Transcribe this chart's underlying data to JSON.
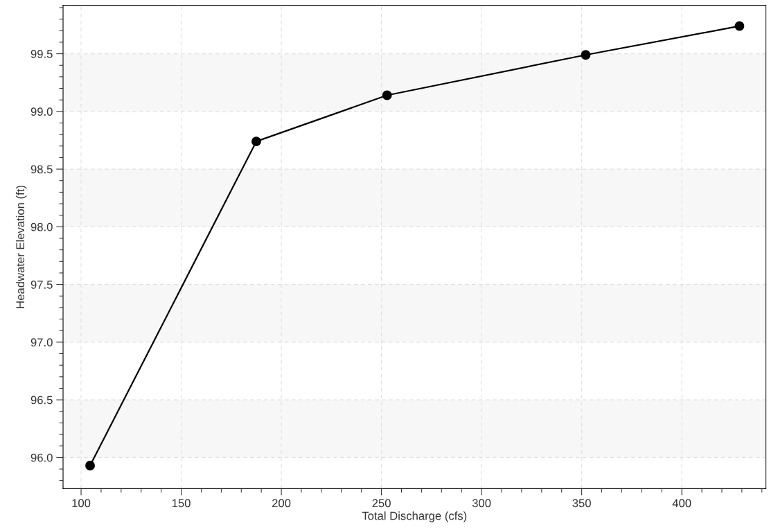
{
  "chart_data": {
    "type": "line",
    "xlabel": "Total Discharge (cfs)",
    "ylabel": "Headwater Elevation (ft)",
    "x": [
      104.5,
      187.5,
      252.8,
      352,
      428.8
    ],
    "series": [
      {
        "color": "#000000",
        "values": [
          95.93,
          98.74,
          99.14,
          99.49,
          99.74
        ]
      }
    ],
    "marker": "circle",
    "line_style": "solid",
    "xlim": [
      91,
      442
    ],
    "xticks": [
      100,
      150,
      200,
      250,
      300,
      350,
      400
    ],
    "ylim": [
      95.73,
      99.92
    ],
    "yticks": [
      {
        "value": 96.0,
        "label": "96.0"
      },
      {
        "value": 96.5,
        "label": "96.5"
      },
      {
        "value": 97.0,
        "label": "97.0"
      },
      {
        "value": 97.5,
        "label": "97.5"
      },
      {
        "value": 98.0,
        "label": "98.0"
      },
      {
        "value": 98.5,
        "label": "98.5"
      },
      {
        "value": 99.0,
        "label": "99.0"
      },
      {
        "value": 99.5,
        "label": "99.5"
      }
    ],
    "grid": true,
    "bands": [
      {
        "axis": "y",
        "from": 96.0,
        "to": 96.5,
        "color": "#f7f7f7"
      },
      {
        "axis": "y",
        "from": 97.0,
        "to": 97.5,
        "color": "#f7f7f7"
      },
      {
        "axis": "y",
        "from": 98.0,
        "to": 98.5,
        "color": "#f7f7f7"
      },
      {
        "axis": "y",
        "from": 99.0,
        "to": 99.5,
        "color": "#f7f7f7"
      }
    ]
  }
}
